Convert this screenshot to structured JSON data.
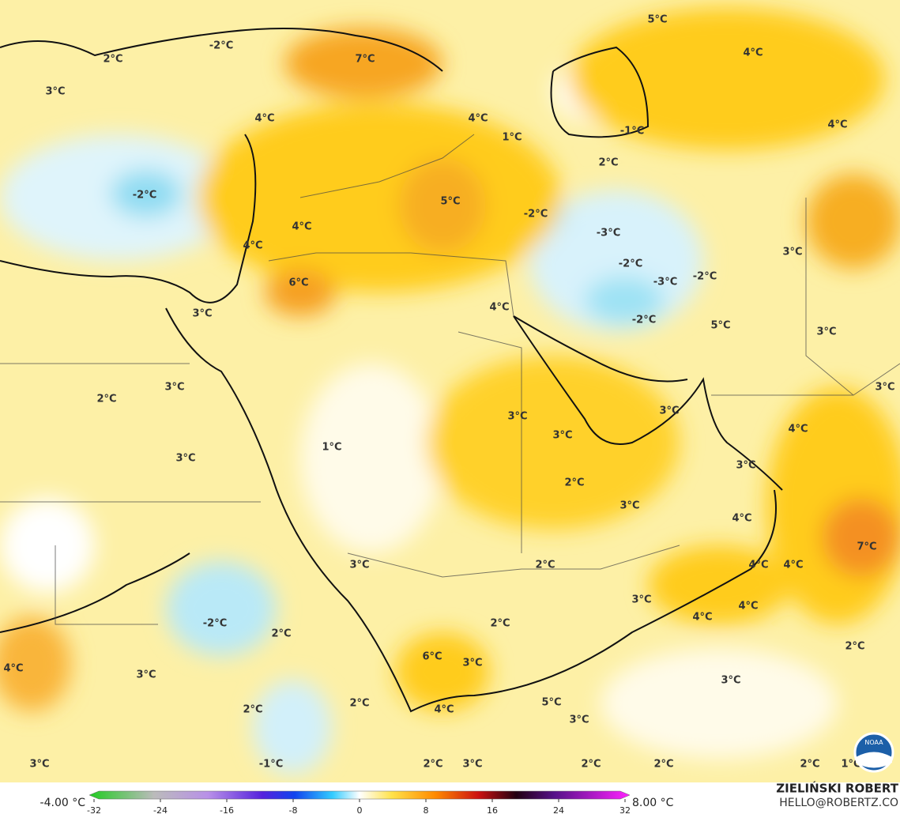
{
  "map": {
    "labels": [
      "5°C",
      "2°C",
      "-2°C",
      "7°C",
      "4°C",
      "3°C",
      "4°C",
      "4°C",
      "-1°C",
      "1°C",
      "4°C",
      "2°C",
      "-2°C",
      "5°C",
      "-2°C",
      "4°C",
      "-3°C",
      "4°C",
      "3°C",
      "-2°C",
      "-3°C",
      "-2°C",
      "6°C",
      "3°C",
      "4°C",
      "-2°C",
      "5°C",
      "3°C",
      "3°C",
      "2°C",
      "3°C",
      "3°C",
      "3°C",
      "3°C",
      "4°C",
      "1°C",
      "3°C",
      "3°C",
      "2°C",
      "3°C",
      "4°C",
      "7°C",
      "3°C",
      "2°C",
      "4°C",
      "4°C",
      "3°C",
      "4°C",
      "4°C",
      "-2°C",
      "2°C",
      "2°C",
      "2°C",
      "6°C",
      "3°C",
      "4°C",
      "3°C",
      "3°C",
      "2°C",
      "5°C",
      "4°C",
      "2°C",
      "3°C",
      "3°C",
      "-1°C",
      "2°C",
      "3°C",
      "2°C",
      "2°C",
      "2°C",
      "1°C"
    ]
  },
  "colorbar": {
    "min_label": "-4.00 °C",
    "max_label": "8.00 °C",
    "range": [
      -32,
      32
    ],
    "ticks": [
      -32,
      -24,
      -16,
      -8,
      0,
      8,
      16,
      24,
      32
    ]
  },
  "credit": {
    "author": "ZIELIŃSKI ROBERT",
    "contact": "HELLO@ROBERTZ.CO",
    "logo": "NOAA"
  }
}
